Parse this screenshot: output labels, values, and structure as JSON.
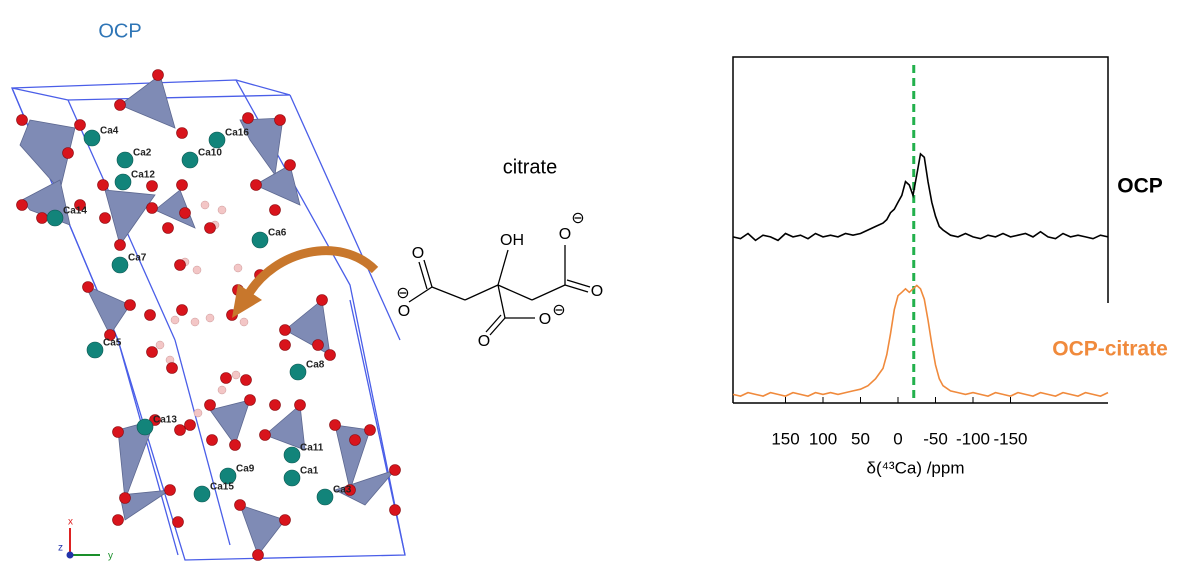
{
  "panel_title": "OCP",
  "crystal": {
    "calcium_labels": [
      "Ca4",
      "Ca16",
      "Ca2",
      "Ca10",
      "Ca12",
      "Ca14",
      "Ca6",
      "Ca7",
      "Ca5",
      "Ca8",
      "Ca13",
      "Ca11",
      "Ca1",
      "Ca9",
      "Ca15",
      "Ca3"
    ],
    "axes": [
      "x",
      "z",
      "y"
    ]
  },
  "citrate": {
    "title": "citrate",
    "atoms": [
      "OH",
      "O",
      "O",
      "O",
      "O",
      "O",
      "O"
    ],
    "charges": [
      "⊖",
      "⊖",
      "⊖"
    ]
  },
  "chart_data": {
    "type": "line",
    "xlabel": "δ(⁴³Ca) /ppm",
    "x": [
      220,
      210,
      200,
      190,
      180,
      170,
      160,
      150,
      140,
      130,
      120,
      110,
      100,
      90,
      80,
      70,
      60,
      50,
      40,
      30,
      20,
      15,
      10,
      5,
      0,
      -5,
      -10,
      -15,
      -20,
      -25,
      -30,
      -35,
      -40,
      -45,
      -50,
      -55,
      -60,
      -70,
      -80,
      -90,
      -100,
      -110,
      -120,
      -130,
      -140,
      -150,
      -160,
      -170,
      -180,
      -190,
      -200,
      -210,
      -220,
      -230,
      -240,
      -250,
      -260,
      -270,
      -280
    ],
    "series": [
      {
        "name": "OCP",
        "color": "#000000",
        "values": [
          0.48,
          0.475,
          0.49,
          0.47,
          0.485,
          0.48,
          0.47,
          0.49,
          0.48,
          0.485,
          0.475,
          0.49,
          0.48,
          0.485,
          0.48,
          0.49,
          0.485,
          0.49,
          0.5,
          0.51,
          0.52,
          0.53,
          0.55,
          0.56,
          0.58,
          0.6,
          0.64,
          0.63,
          0.6,
          0.66,
          0.72,
          0.71,
          0.64,
          0.58,
          0.54,
          0.51,
          0.5,
          0.485,
          0.48,
          0.49,
          0.48,
          0.475,
          0.485,
          0.48,
          0.49,
          0.48,
          0.485,
          0.49,
          0.48,
          0.495,
          0.48,
          0.475,
          0.49,
          0.48,
          0.485,
          0.48,
          0.475,
          0.485,
          0.48
        ]
      },
      {
        "name": "OCP-citrate",
        "color": "#f08a3c",
        "values": [
          0.025,
          0.02,
          0.03,
          0.025,
          0.02,
          0.03,
          0.025,
          0.02,
          0.03,
          0.025,
          0.02,
          0.03,
          0.025,
          0.03,
          0.025,
          0.03,
          0.035,
          0.04,
          0.05,
          0.07,
          0.1,
          0.14,
          0.2,
          0.27,
          0.31,
          0.32,
          0.33,
          0.32,
          0.33,
          0.34,
          0.33,
          0.3,
          0.24,
          0.17,
          0.11,
          0.07,
          0.05,
          0.035,
          0.03,
          0.025,
          0.03,
          0.025,
          0.02,
          0.03,
          0.025,
          0.02,
          0.03,
          0.025,
          0.02,
          0.03,
          0.025,
          0.02,
          0.03,
          0.025,
          0.02,
          0.03,
          0.025,
          0.02,
          0.03
        ]
      }
    ],
    "xlim": [
      220,
      -280
    ],
    "ylim": [
      0,
      1
    ],
    "xticks": [
      150,
      100,
      50,
      0,
      -50,
      -100,
      -150
    ],
    "reference_line": {
      "x": -21,
      "color": "#22b04c"
    }
  }
}
